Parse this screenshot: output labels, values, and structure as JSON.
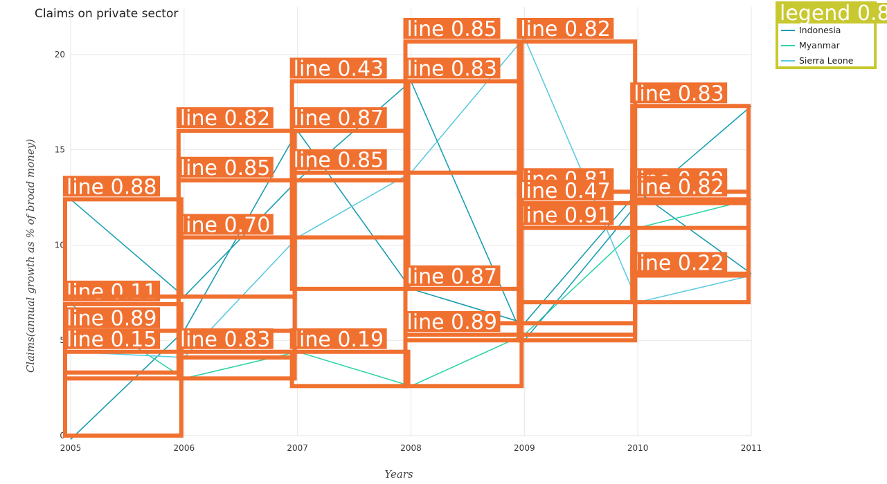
{
  "colors": {
    "indonesia": "#1a9cb0",
    "myanmar": "#2fd4a8",
    "sierra_leone": "#5ccbe0",
    "overlay_box": "#f07030",
    "legend_overlay": "#c8c830",
    "grid": "#e6e6e6"
  },
  "chart_data": {
    "type": "line",
    "title": "Claims on private sector",
    "xlabel": "Years",
    "ylabel": "Claims(annual growth as % of broad money)",
    "categories": [
      "2005",
      "2006",
      "2007",
      "2008",
      "2009",
      "2010",
      "2011"
    ],
    "ylim": [
      0,
      22.5
    ],
    "yticks": [
      0,
      5,
      10,
      15,
      20
    ],
    "grid": true,
    "legend_position": "top-right",
    "series": [
      {
        "name": "Indonesia",
        "color": "#1a9cb0",
        "values": [
          -0.2,
          5.5,
          16.0,
          7.7,
          5.9,
          12.8,
          8.5
        ]
      },
      {
        "name": "Myanmar",
        "color": "#2fd4a8",
        "values": [
          6.9,
          3.0,
          4.4,
          2.6,
          5.3,
          10.9,
          12.4
        ]
      },
      {
        "name": "Sierra Leone",
        "color": "#5ccbe0",
        "values": [
          4.4,
          4.1,
          10.4,
          13.8,
          20.9,
          7.0,
          8.4
        ]
      },
      {
        "name": "",
        "color": "#1aa0b4",
        "values": [
          12.4,
          7.3,
          13.4,
          18.6,
          5.0,
          12.2,
          17.3
        ]
      }
    ]
  },
  "overlay": {
    "legend_label": "legend 0.8",
    "boxes": [
      {
        "label": "line 0.89"
      },
      {
        "label": "line 0.82"
      },
      {
        "label": "line 0.87"
      },
      {
        "label": "line 0.87"
      },
      {
        "label": "line 0.81"
      },
      {
        "label": "line 0.89"
      },
      {
        "label": "line 0.11"
      },
      {
        "label": "line 0.83"
      },
      {
        "label": "line 0.19"
      },
      {
        "label": "line 0.89"
      },
      {
        "label": "line 0.91"
      },
      {
        "label": "line 0.82"
      },
      {
        "label": "line 0.15"
      },
      {
        "label": "line 0.70"
      },
      {
        "label": "line 0.85"
      },
      {
        "label": "line 0.85"
      },
      {
        "label": "line 0.82"
      },
      {
        "label": "line 0.22"
      },
      {
        "label": "line 0.88"
      },
      {
        "label": "line 0.85"
      },
      {
        "label": "line 0.43"
      },
      {
        "label": "line 0.83"
      },
      {
        "label": "line 0.47"
      },
      {
        "label": "line 0.83"
      }
    ]
  }
}
